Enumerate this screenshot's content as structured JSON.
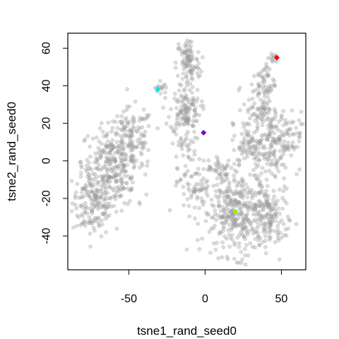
{
  "chart_data": {
    "type": "scatter",
    "title": "",
    "xlabel": "tsne1_rand_seed0",
    "ylabel": "tsne2_rand_seed0",
    "xlim": [
      -90,
      66
    ],
    "ylim": [
      -58,
      68
    ],
    "x_ticks": [
      -50,
      0,
      50
    ],
    "y_ticks": [
      -40,
      -20,
      0,
      20,
      40,
      60
    ],
    "grid": false,
    "legend": "none",
    "background_point_color": "#9a9a9a",
    "clusters": [
      {
        "cx": -73,
        "cy": -22,
        "sx": 7,
        "sy": 9,
        "n": 170
      },
      {
        "cx": -63,
        "cy": 0,
        "sx": 9,
        "sy": 9,
        "n": 190
      },
      {
        "cx": -48,
        "cy": 12,
        "sx": 7,
        "sy": 8,
        "n": 130
      },
      {
        "cx": -55,
        "cy": -12,
        "sx": 5,
        "sy": 6,
        "n": 60
      },
      {
        "cx": -11,
        "cy": 52,
        "sx": 4,
        "sy": 7,
        "n": 100
      },
      {
        "cx": -13,
        "cy": 27,
        "sx": 5,
        "sy": 6,
        "n": 120
      },
      {
        "cx": -14,
        "cy": 8,
        "sx": 4,
        "sy": 4,
        "n": 30
      },
      {
        "cx": -29,
        "cy": 39,
        "sx": 2,
        "sy": 2,
        "n": 14
      },
      {
        "cx": -8,
        "cy": -14,
        "sx": 5,
        "sy": 7,
        "n": 60
      },
      {
        "cx": 22,
        "cy": -28,
        "sx": 12,
        "sy": 11,
        "n": 380
      },
      {
        "cx": 42,
        "cy": -30,
        "sx": 6,
        "sy": 9,
        "n": 120
      },
      {
        "cx": 45,
        "cy": 10,
        "sx": 9,
        "sy": 8,
        "n": 200
      },
      {
        "cx": 35,
        "cy": 28,
        "sx": 5,
        "sy": 6,
        "n": 70
      },
      {
        "cx": 40,
        "cy": 42,
        "sx": 3,
        "sy": 6,
        "n": 50
      },
      {
        "cx": 45,
        "cy": 55,
        "sx": 1.5,
        "sy": 2,
        "n": 12
      },
      {
        "cx": 28,
        "cy": 8,
        "sx": 5,
        "sy": 6,
        "n": 60
      },
      {
        "cx": 10,
        "cy": -5,
        "sx": 5,
        "sy": 4,
        "n": 40
      }
    ],
    "highlight_points": [
      {
        "x": 47,
        "y": 55,
        "color": "#ff0000"
      },
      {
        "x": -31,
        "y": 38,
        "color": "#00e5e5"
      },
      {
        "x": -1,
        "y": 15,
        "color": "#7a00e0"
      },
      {
        "x": 20,
        "y": -27,
        "color": "#80ff00"
      }
    ]
  }
}
